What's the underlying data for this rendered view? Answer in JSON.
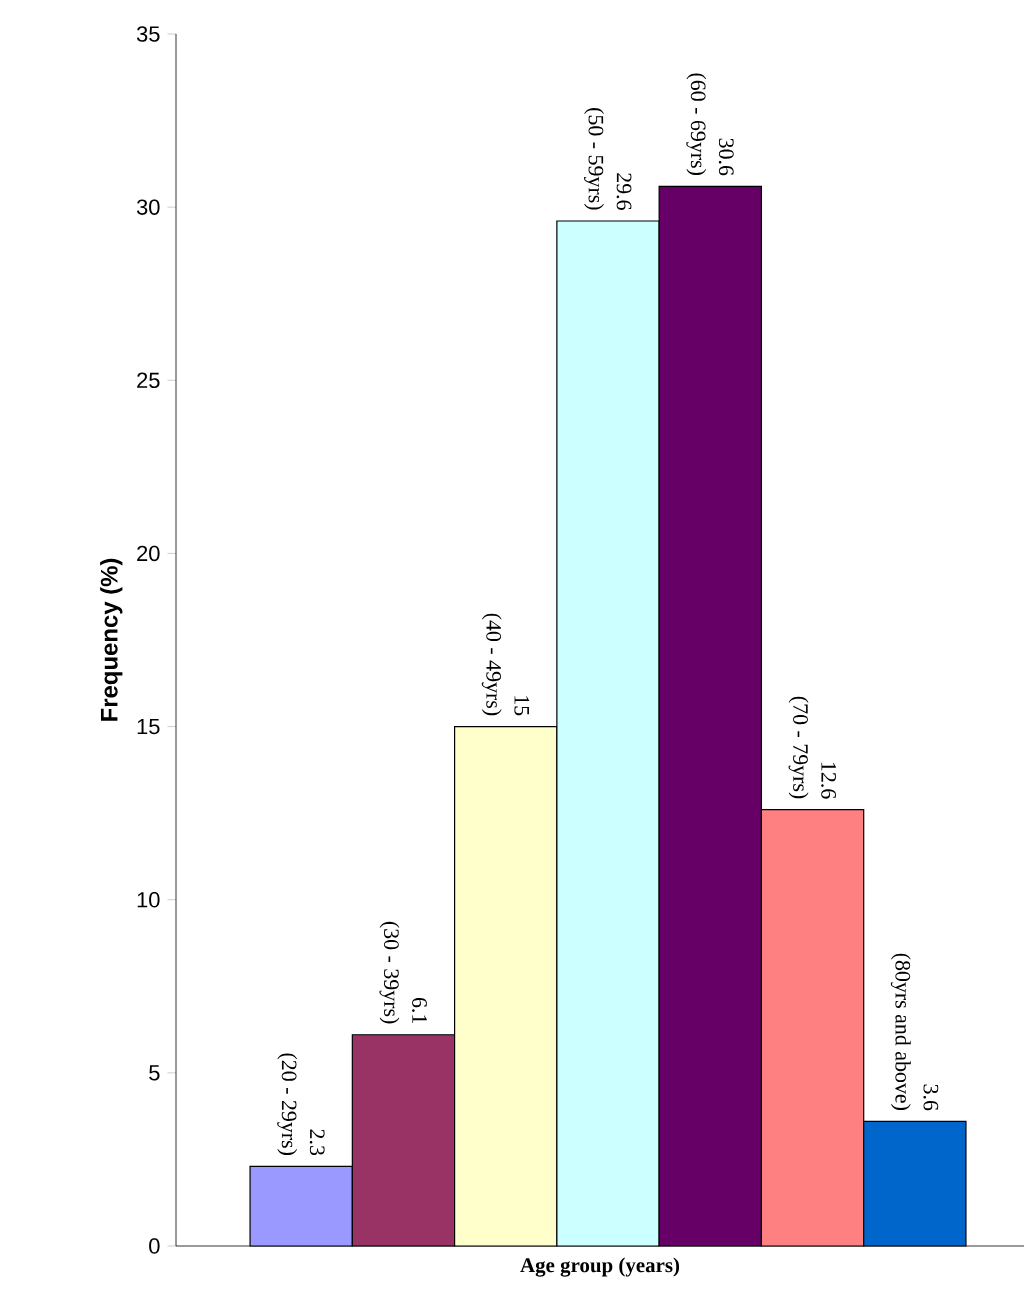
{
  "chart_data": {
    "type": "bar",
    "xlabel": "Age group (years)",
    "ylabel": "Frequency (%)",
    "categories": [
      "(20 - 29yrs)",
      "(30 - 39yrs)",
      "(40 - 49yrs)",
      "(50 - 59yrs)",
      "(60 - 69yrs)",
      "(70 - 79yrs)",
      "(80yrs and above)"
    ],
    "values": [
      2.3,
      6.1,
      15,
      29.6,
      30.6,
      12.6,
      3.6
    ],
    "colors": [
      "#9999ff",
      "#993366",
      "#ffffcc",
      "#ccffff",
      "#660066",
      "#ff8080",
      "#0066cc"
    ],
    "ylim": [
      0,
      35
    ],
    "yticks": [
      0,
      5,
      10,
      15,
      20,
      25,
      30,
      35
    ],
    "data_labels": true,
    "grid": false
  }
}
